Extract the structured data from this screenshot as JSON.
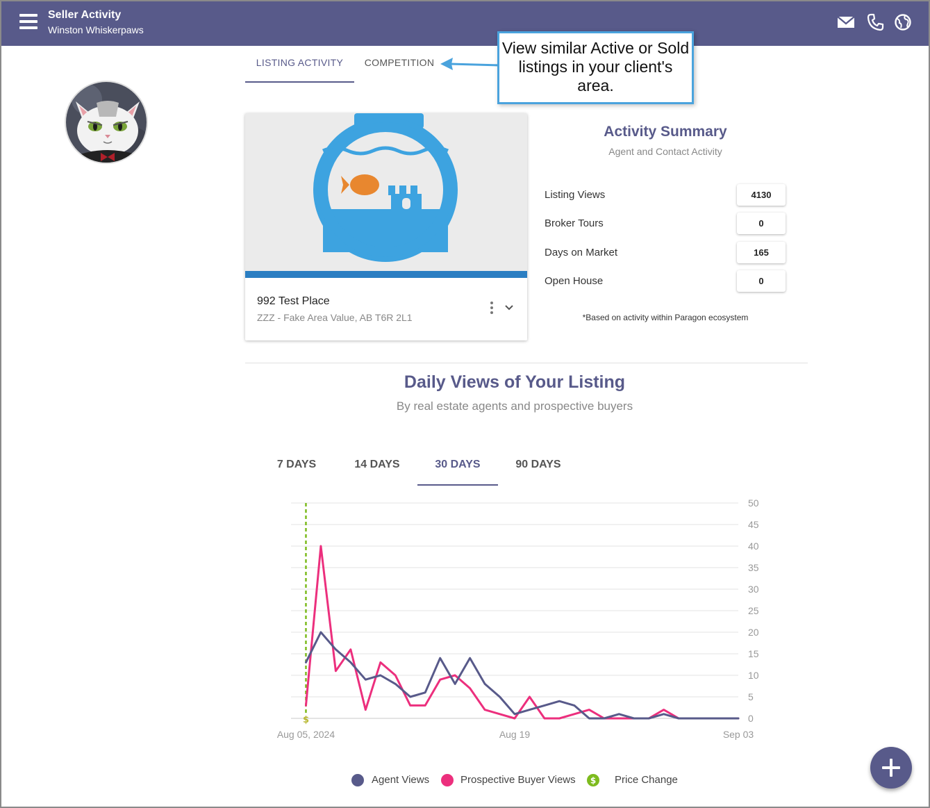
{
  "header": {
    "title": "Seller Activity",
    "subtitle": "Winston Whiskerpaws",
    "icons": [
      "menu-icon",
      "mail-icon",
      "phone-icon",
      "globe-icon"
    ]
  },
  "tabs": [
    {
      "label": "LISTING ACTIVITY",
      "active": true
    },
    {
      "label": "COMPETITION",
      "active": false
    }
  ],
  "callout": {
    "text": "View similar Active or Sold listings in your client's area."
  },
  "listing": {
    "address": "992 Test Place",
    "area": "ZZZ - Fake Area Value, AB T6R 2L1"
  },
  "activity_summary": {
    "title": "Activity Summary",
    "subtitle": "Agent and Contact Activity",
    "stats": [
      {
        "label": "Listing Views",
        "value": "4130"
      },
      {
        "label": "Broker Tours",
        "value": "0"
      },
      {
        "label": "Days on Market",
        "value": "165"
      },
      {
        "label": "Open House",
        "value": "0"
      }
    ],
    "note": "*Based on activity within Paragon ecosystem"
  },
  "daily_views": {
    "title": "Daily Views of Your Listing",
    "subtitle": "By real estate agents and prospective buyers",
    "ranges": [
      {
        "label": "7 DAYS",
        "active": false
      },
      {
        "label": "14 DAYS",
        "active": false
      },
      {
        "label": "30 DAYS",
        "active": true
      },
      {
        "label": "90 DAYS",
        "active": false
      }
    ]
  },
  "colors": {
    "primary": "#585a8a",
    "buyer": "#ec2f7d",
    "price_change": "#7dbb1e",
    "callout_border": "#4aa3dd"
  },
  "chart_data": {
    "type": "line",
    "title": "Daily Views of Your Listing",
    "subtitle": "By real estate agents and prospective buyers",
    "x_tick_labels": [
      "Aug 05, 2024",
      "Aug 19",
      "Sep 03"
    ],
    "y_tick_labels": [
      "0",
      "5",
      "10",
      "15",
      "20",
      "25",
      "30",
      "35",
      "40",
      "45",
      "50"
    ],
    "ylim": [
      0,
      50
    ],
    "xlim": [
      -1,
      29
    ],
    "grid": true,
    "legend_position": "bottom",
    "price_change_day": 0,
    "price_change_marker": "$",
    "series": [
      {
        "name": "Agent Views",
        "color": "#585a8a",
        "values": [
          13,
          20,
          16,
          13,
          9,
          10,
          8,
          5,
          6,
          14,
          8,
          14,
          8,
          5,
          1,
          2,
          3,
          4,
          3,
          0,
          0,
          1,
          0,
          0,
          1,
          0,
          0,
          0,
          0,
          0
        ]
      },
      {
        "name": "Prospective Buyer Views",
        "color": "#ec2f7d",
        "values": [
          3,
          40,
          11,
          16,
          2,
          13,
          10,
          3,
          3,
          9,
          10,
          7,
          2,
          1,
          0,
          5,
          0,
          0,
          1,
          2,
          0,
          0,
          0,
          0,
          2,
          0,
          0,
          0,
          0,
          0
        ]
      }
    ],
    "legend": [
      "Agent Views",
      "Prospective Buyer Views",
      "Price Change"
    ]
  }
}
